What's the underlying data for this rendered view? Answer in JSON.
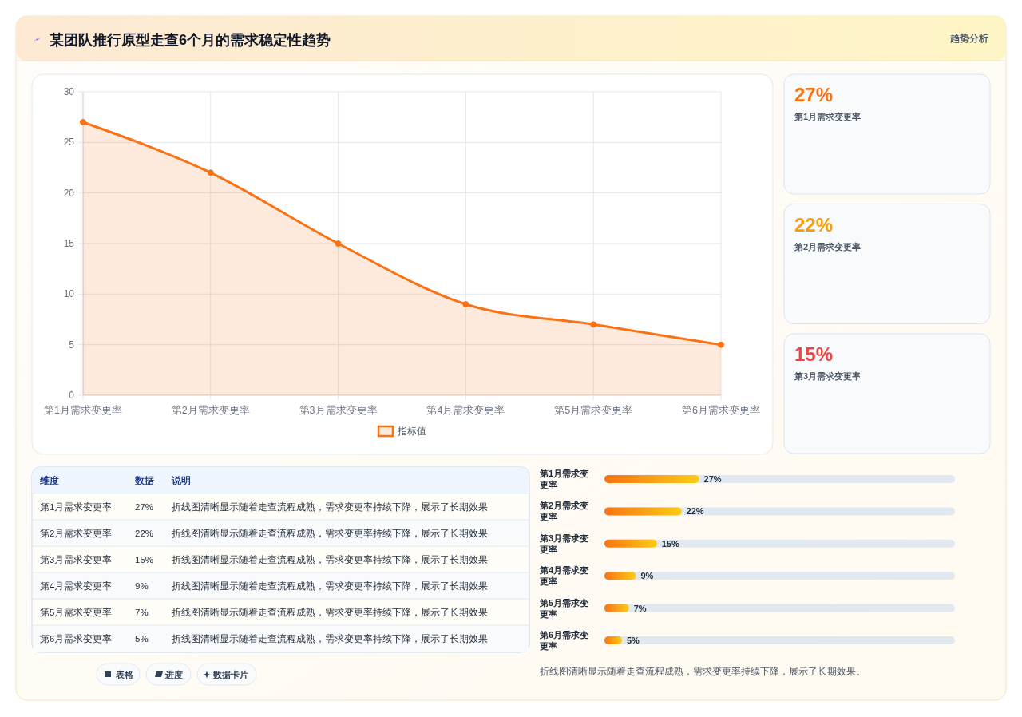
{
  "chart_data": [
    {
      "type": "area",
      "title": "某团队推行原型走查6个月的需求稳定性趋势",
      "categories": [
        "第1月需求变更率",
        "第2月需求变更率",
        "第3月需求变更率",
        "第4月需求变更率",
        "第5月需求变更率",
        "第6月需求变更率"
      ],
      "series": [
        {
          "name": "指标值",
          "color": "#f97316",
          "values": [
            27,
            22,
            15,
            9,
            7,
            5
          ]
        }
      ],
      "ylim": [
        0,
        30
      ],
      "yticks": [
        0,
        5,
        10,
        15,
        20,
        25,
        30
      ],
      "grid": true,
      "legend": "bottom",
      "marker": "circle",
      "line_style": "solid",
      "annotations": [
        "趋势分析",
        "维度",
        "数据",
        "说明",
        "折线图清晰显示随着走查流程成熟，需求变更率持续下降，展示了长期效果",
        "表格",
        "进度",
        "数据卡片",
        "27%",
        "22%",
        "15%",
        "9%",
        "7%",
        "5%"
      ]
    },
    {
      "type": "bar",
      "orientation": "horizontal",
      "categories": [
        "第1月需求变更率",
        "第2月需求变更率",
        "第3月需求变更率",
        "第4月需求变更率",
        "第5月需求变更率",
        "第6月需求变更率"
      ],
      "values": [
        27,
        22,
        15,
        9,
        7,
        5
      ],
      "value_labels": [
        "27%",
        "22%",
        "15%",
        "9%",
        "7%",
        "5%"
      ],
      "annotations": [
        "折线图清晰显示随着走查流程成熟，需求变更率持续下降，展示了长期效果。"
      ]
    }
  ]
}
